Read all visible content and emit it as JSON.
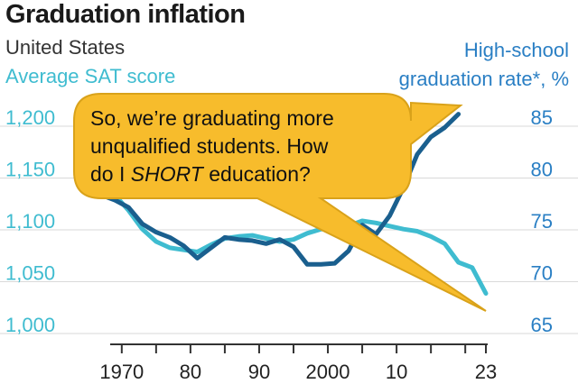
{
  "header": {
    "title": "Graduation inflation",
    "subtitle": "United States",
    "left_axis_title": "Average SAT score",
    "right_axis_title_line1": "High-school",
    "right_axis_title_line2": "graduation rate*, %"
  },
  "callout": {
    "line1": "So, we’re graduating more",
    "line2": "unqualified students.  How",
    "line3_pre": "do I ",
    "line3_em": "SHORT",
    "line3_post": " education?"
  },
  "colors": {
    "sat": "#3fbcd0",
    "grad": "#1a5f8e",
    "right_axis": "#2a7fc4",
    "left_axis": "#3fbcd0",
    "callout_fill": "#f7bc2c",
    "callout_stroke": "#d9a21a"
  },
  "chart_data": {
    "type": "line",
    "xlim": [
      1967,
      2023
    ],
    "x_ticks": [
      "1970",
      "80",
      "90",
      "2000",
      "10",
      "23"
    ],
    "x_tick_values": [
      1970,
      1980,
      1990,
      2000,
      2010,
      2023
    ],
    "left_axis": {
      "label": "Average SAT score",
      "ylim": [
        1000,
        1200
      ],
      "ticks": [
        "1,000",
        "1,050",
        "1,100",
        "1,150",
        "1,200"
      ],
      "tick_values": [
        1000,
        1050,
        1100,
        1150,
        1200
      ]
    },
    "right_axis": {
      "label": "High-school graduation rate*, %",
      "ylim": [
        65,
        85
      ],
      "ticks": [
        "65",
        "70",
        "75",
        "80",
        "85"
      ],
      "tick_values": [
        65,
        70,
        75,
        80,
        85
      ]
    },
    "series": [
      {
        "axis": "left",
        "x": [
          1967,
          1969,
          1971,
          1973,
          1975,
          1977,
          1979,
          1981,
          1983,
          1985,
          1987,
          1989,
          1991,
          1993,
          1995,
          1997,
          1999,
          2001,
          2003,
          2005,
          2007,
          2009,
          2011,
          2013,
          2015,
          2017,
          2019,
          2021,
          2023
        ],
        "y": [
          1130,
          1125,
          1110,
          1092,
          1080,
          1074,
          1072,
          1070,
          1077,
          1083,
          1085,
          1086,
          1083,
          1080,
          1082,
          1088,
          1092,
          1093,
          1095,
          1100,
          1098,
          1095,
          1092,
          1090,
          1085,
          1078,
          1060,
          1055,
          1030
        ]
      },
      {
        "axis": "right",
        "x": [
          1967,
          1969,
          1971,
          1973,
          1975,
          1977,
          1979,
          1981,
          1983,
          1985,
          1987,
          1989,
          1991,
          1993,
          1995,
          1997,
          1999,
          2001,
          2003,
          2005,
          2007,
          2009,
          2011,
          2013,
          2015,
          2017,
          2019
        ],
        "y": [
          77.5,
          77.0,
          76.3,
          74.7,
          73.9,
          73.4,
          72.6,
          71.4,
          72.4,
          73.4,
          73.2,
          73.1,
          72.8,
          73.2,
          72.5,
          70.8,
          70.8,
          70.9,
          72.1,
          74.6,
          73.7,
          75.5,
          78.2,
          81.4,
          83.1,
          84.0,
          85.3
        ]
      }
    ]
  }
}
